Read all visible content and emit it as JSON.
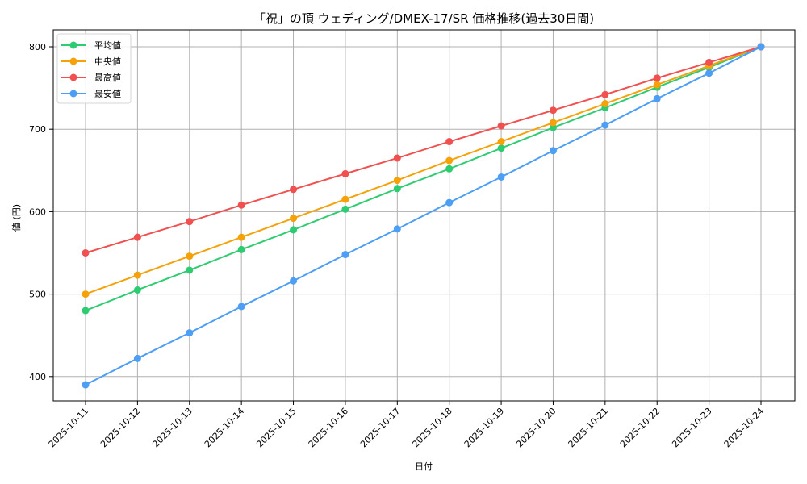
{
  "chart_data": {
    "type": "line",
    "title": "「祝」の頂 ウェディング/DMEX-17/SR 価格推移(過去30日間)",
    "xlabel": "日付",
    "ylabel": "値 (円)",
    "ylim": [
      370,
      820
    ],
    "yticks": [
      400,
      500,
      600,
      700,
      800
    ],
    "grid": true,
    "legend_position": "upper left",
    "categories": [
      "2025-10-11",
      "2025-10-12",
      "2025-10-13",
      "2025-10-14",
      "2025-10-15",
      "2025-10-16",
      "2025-10-17",
      "2025-10-18",
      "2025-10-19",
      "2025-10-20",
      "2025-10-21",
      "2025-10-22",
      "2025-10-23",
      "2025-10-24"
    ],
    "series": [
      {
        "name": "平均値",
        "color": "#2ecc71",
        "values": [
          480,
          505,
          529,
          554,
          578,
          603,
          628,
          652,
          677,
          702,
          726,
          751,
          775,
          800
        ]
      },
      {
        "name": "中央値",
        "color": "#f5a20a",
        "values": [
          500,
          523,
          546,
          569,
          592,
          615,
          638,
          662,
          685,
          708,
          731,
          754,
          777,
          800
        ]
      },
      {
        "name": "最高値",
        "color": "#f05050",
        "values": [
          550,
          569,
          588,
          608,
          627,
          646,
          665,
          685,
          704,
          723,
          742,
          762,
          781,
          800
        ]
      },
      {
        "name": "最安値",
        "color": "#4d9ef5",
        "values": [
          390,
          422,
          453,
          485,
          516,
          548,
          579,
          611,
          642,
          674,
          705,
          737,
          768,
          800
        ]
      }
    ]
  }
}
